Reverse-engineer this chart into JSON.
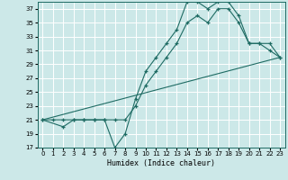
{
  "xlabel": "Humidex (Indice chaleur)",
  "bg_color": "#cce8e8",
  "grid_color": "#ffffff",
  "line_color": "#1e6b63",
  "xlim": [
    -0.5,
    23.5
  ],
  "ylim": [
    17,
    38
  ],
  "xticks": [
    0,
    1,
    2,
    3,
    4,
    5,
    6,
    7,
    8,
    9,
    10,
    11,
    12,
    13,
    14,
    15,
    16,
    17,
    18,
    19,
    20,
    21,
    22,
    23
  ],
  "yticks": [
    17,
    19,
    21,
    23,
    25,
    27,
    29,
    31,
    33,
    35,
    37
  ],
  "line1_x": [
    0,
    1,
    2,
    3,
    4,
    5,
    6,
    7,
    8,
    9,
    10,
    11,
    12,
    13,
    14,
    15,
    16,
    17,
    18,
    19,
    20,
    21,
    22,
    23
  ],
  "line1_y": [
    21,
    21,
    21,
    21,
    21,
    21,
    21,
    17,
    19,
    24,
    28,
    30,
    32,
    34,
    38,
    38,
    37,
    38,
    38,
    36,
    32,
    32,
    31,
    30
  ],
  "line2_x": [
    0,
    2,
    3,
    4,
    5,
    6,
    7,
    8,
    9,
    10,
    11,
    12,
    13,
    14,
    15,
    16,
    17,
    18,
    19,
    20,
    21,
    22,
    23
  ],
  "line2_y": [
    21,
    20,
    21,
    21,
    21,
    21,
    21,
    21,
    23,
    26,
    28,
    30,
    32,
    35,
    36,
    35,
    37,
    37,
    35,
    32,
    32,
    32,
    30
  ],
  "line3_x": [
    0,
    23
  ],
  "line3_y": [
    21,
    30
  ]
}
